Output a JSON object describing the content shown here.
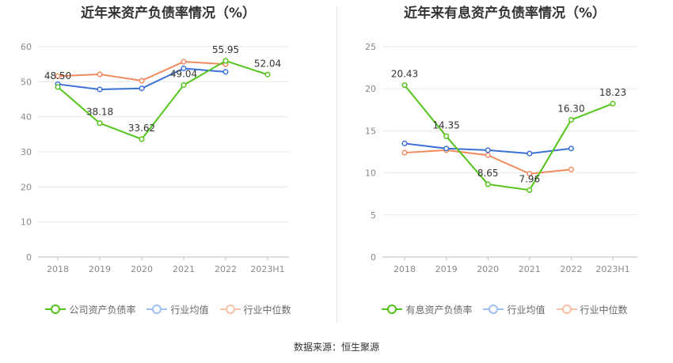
{
  "source": "数据来源：恒生聚源",
  "chart_data": [
    {
      "type": "line",
      "title": "近年来资产负债率情况（%）",
      "categories": [
        "2018",
        "2019",
        "2020",
        "2021",
        "2022",
        "2023H1"
      ],
      "yticks": [
        "0",
        "10",
        "20",
        "30",
        "40",
        "50",
        "60"
      ],
      "ylim": [
        0,
        60
      ],
      "legend_position": "bottom",
      "grid": true,
      "series": [
        {
          "name": "公司资产负债率",
          "color": "#52c41a",
          "values": [
            48.5,
            38.18,
            33.62,
            49.04,
            55.95,
            52.04
          ],
          "labels": [
            "48.50",
            "38.18",
            "33.62",
            "49.04",
            "55.95",
            "52.04"
          ],
          "label_pos": [
            "above",
            "above",
            "above",
            "above",
            "above",
            "above"
          ]
        },
        {
          "name": "行业均值",
          "color": "#3a6fd8",
          "values": [
            49.3,
            47.8,
            48.1,
            53.8,
            52.8,
            null
          ]
        },
        {
          "name": "行业中位数",
          "color": "#f08a5d",
          "values": [
            51.6,
            52.1,
            50.3,
            55.7,
            55.0,
            null
          ]
        }
      ]
    },
    {
      "type": "line",
      "title": "近年来有息资产负债率情况（%）",
      "categories": [
        "2018",
        "2019",
        "2020",
        "2021",
        "2022",
        "2023H1"
      ],
      "yticks": [
        "0",
        "5",
        "10",
        "15",
        "20",
        "25"
      ],
      "ylim": [
        0,
        25
      ],
      "legend_position": "bottom",
      "grid": true,
      "series": [
        {
          "name": "有息资产负债率",
          "color": "#52c41a",
          "values": [
            20.43,
            14.35,
            8.65,
            7.96,
            16.3,
            18.23
          ],
          "labels": [
            "20.43",
            "14.35",
            "8.65",
            "7.96",
            "16.30",
            "18.23"
          ],
          "label_pos": [
            "above",
            "above",
            "above",
            "above",
            "above",
            "above"
          ]
        },
        {
          "name": "行业均值",
          "color": "#3a6fd8",
          "values": [
            13.5,
            12.9,
            12.7,
            12.3,
            12.9,
            null
          ]
        },
        {
          "name": "行业中位数",
          "color": "#f08a5d",
          "values": [
            12.4,
            12.7,
            12.1,
            9.9,
            10.4,
            null
          ]
        }
      ]
    }
  ]
}
